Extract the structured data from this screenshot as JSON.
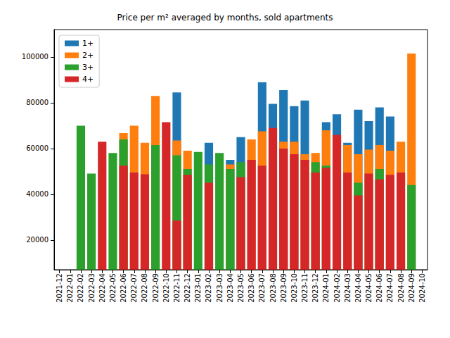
{
  "chart_data": {
    "type": "bar",
    "title": "Price per m² averaged by months, sold apartments",
    "categories": [
      "2021-12",
      "2022-01",
      "2022-02",
      "2022-03",
      "2022-04",
      "2022-05",
      "2022-06",
      "2022-07",
      "2022-08",
      "2022-09",
      "2022-10",
      "2022-11",
      "2022-12",
      "2023-01",
      "2023-02",
      "2023-03",
      "2023-04",
      "2023-05",
      "2023-06",
      "2023-07",
      "2023-08",
      "2023-09",
      "2023-10",
      "2023-11",
      "2023-12",
      "2024-01",
      "2024-02",
      "2024-03",
      "2024-04",
      "2024-05",
      "2024-06",
      "2024-07",
      "2024-08",
      "2024-09",
      "2024-10"
    ],
    "series": [
      {
        "name": "1+",
        "color": "#1f77b4",
        "values": [
          null,
          null,
          null,
          null,
          null,
          null,
          null,
          null,
          null,
          null,
          null,
          84500,
          null,
          null,
          62500,
          null,
          55000,
          65000,
          null,
          89000,
          79500,
          85500,
          78500,
          81000,
          null,
          71500,
          75000,
          62500,
          77000,
          72000,
          78000,
          74000,
          null,
          null,
          null
        ]
      },
      {
        "name": "2+",
        "color": "#ff7f0e",
        "values": [
          null,
          null,
          null,
          null,
          null,
          null,
          66700,
          70000,
          62500,
          83000,
          null,
          63500,
          59000,
          null,
          null,
          null,
          53000,
          null,
          64000,
          67500,
          null,
          63000,
          63000,
          57500,
          58000,
          68000,
          null,
          61500,
          57500,
          59500,
          61500,
          59000,
          63000,
          101500,
          null
        ]
      },
      {
        "name": "3+",
        "color": "#2ca02c",
        "values": [
          null,
          null,
          70000,
          49000,
          null,
          58000,
          64000,
          null,
          null,
          61500,
          null,
          57000,
          51000,
          58500,
          53000,
          58000,
          51000,
          54000,
          null,
          null,
          null,
          null,
          null,
          null,
          54000,
          52500,
          null,
          null,
          45000,
          null,
          51000,
          null,
          null,
          44000,
          null
        ]
      },
      {
        "name": "4+",
        "color": "#d62728",
        "values": [
          null,
          null,
          null,
          null,
          63000,
          null,
          52500,
          49500,
          48700,
          null,
          71500,
          28500,
          48500,
          null,
          45000,
          null,
          null,
          47500,
          55000,
          52500,
          69000,
          60000,
          57500,
          55000,
          49500,
          51500,
          66000,
          49500,
          39500,
          49000,
          46500,
          48500,
          49500,
          null,
          null
        ]
      }
    ],
    "ylim": [
      7000,
      112000
    ],
    "yticks": [
      20000,
      40000,
      60000,
      80000,
      100000
    ],
    "legend": "upper left",
    "grid": false,
    "stacked": false
  }
}
